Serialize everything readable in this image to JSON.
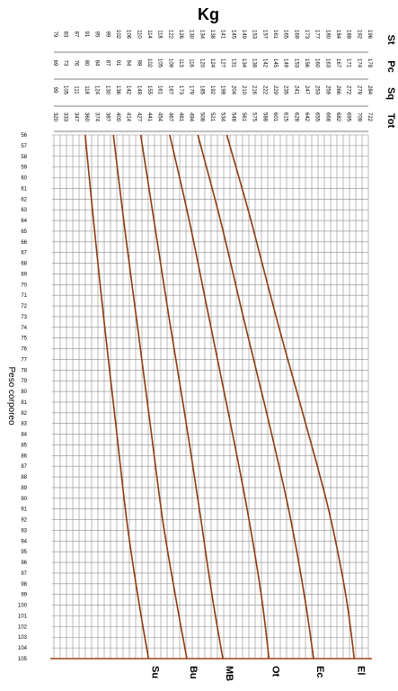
{
  "chart_data": {
    "type": "line",
    "title": "Kg",
    "ylabel": "Peso corporeo",
    "xlabel": "",
    "scales": [
      {
        "name": "St",
        "range": [
          79,
          196
        ]
      },
      {
        "name": "Pc",
        "range": [
          69,
          178
        ]
      },
      {
        "name": "Sq",
        "range": [
          99,
          284
        ]
      },
      {
        "name": "Tot",
        "range": [
          320,
          722
        ]
      }
    ],
    "y_ticks": [
      56,
      57,
      58,
      59,
      60,
      61,
      62,
      63,
      64,
      65,
      66,
      67,
      68,
      69,
      70,
      71,
      72,
      73,
      74,
      75,
      76,
      77,
      78,
      79,
      80,
      81,
      82,
      83,
      84,
      85,
      86,
      87,
      88,
      89,
      90,
      91,
      92,
      93,
      94,
      95,
      96,
      97,
      98,
      99,
      100,
      101,
      102,
      103,
      104,
      105
    ],
    "ylim": [
      56,
      105
    ],
    "xlim": [
      320,
      722
    ],
    "grid": true,
    "series": [
      {
        "name": "Su",
        "x": [
          360,
          372,
          385,
          399,
          413,
          427,
          441
        ],
        "y": [
          56,
          65,
          74,
          83,
          92,
          99,
          105
        ]
      },
      {
        "name": "Bu",
        "x": [
          396,
          411,
          427,
          443,
          459,
          475,
          490
        ],
        "y": [
          56,
          65,
          74,
          83,
          92,
          99,
          105
        ]
      },
      {
        "name": "MB",
        "x": [
          431,
          448,
          467,
          487,
          506,
          522,
          536
        ],
        "y": [
          56,
          64,
          73,
          82,
          91,
          99,
          105
        ]
      },
      {
        "name": "Ot",
        "x": [
          468,
          493,
          518,
          543,
          567,
          585,
          595
        ],
        "y": [
          56,
          64,
          73,
          82,
          91,
          99,
          105
        ]
      },
      {
        "name": "Ec",
        "x": [
          504,
          533,
          562,
          592,
          620,
          640,
          652
        ],
        "y": [
          56,
          64,
          73,
          82,
          91,
          99,
          105
        ]
      },
      {
        "name": "El",
        "x": [
          541,
          572,
          604,
          638,
          671,
          693,
          704
        ],
        "y": [
          56,
          64,
          73,
          82,
          91,
          99,
          105
        ]
      }
    ]
  }
}
